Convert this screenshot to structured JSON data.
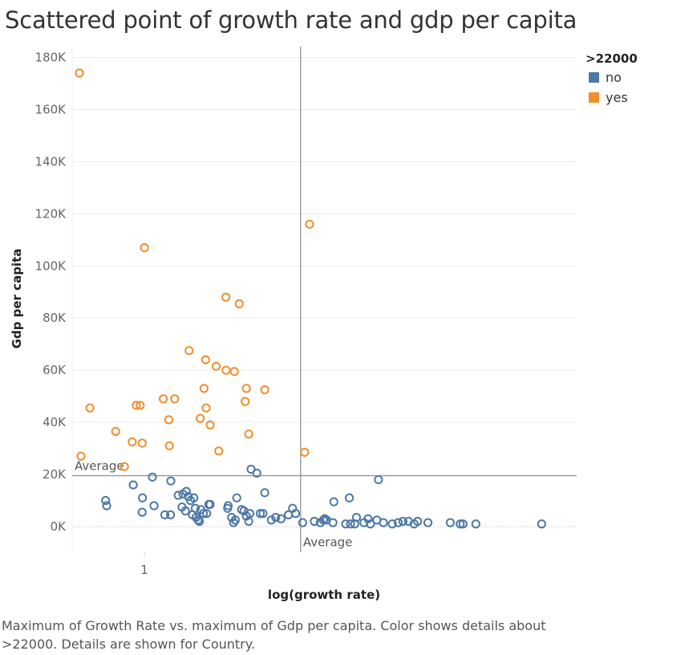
{
  "chart_data": {
    "type": "scatter",
    "title": "Scattered point of growth rate and gdp per capita",
    "xlabel": "log(growth rate)",
    "ylabel": "Gdp per capita",
    "x_scale": "log",
    "x_tick_labels": [
      {
        "value": 1,
        "label": "1"
      }
    ],
    "xlim": [
      0.8,
      3.8
    ],
    "ylim": [
      -10000,
      184000
    ],
    "y_ticks": [
      {
        "value": 0,
        "label": "0K"
      },
      {
        "value": 20000,
        "label": "20K"
      },
      {
        "value": 40000,
        "label": "40K"
      },
      {
        "value": 60000,
        "label": "60K"
      },
      {
        "value": 80000,
        "label": "80K"
      },
      {
        "value": 100000,
        "label": "100K"
      },
      {
        "value": 120000,
        "label": "120K"
      },
      {
        "value": 140000,
        "label": "140K"
      },
      {
        "value": 160000,
        "label": "160K"
      },
      {
        "value": 180000,
        "label": "180K"
      }
    ],
    "grid": true,
    "legend": {
      "title": ">22000",
      "placement": "right"
    },
    "reference_lines": {
      "x_average": {
        "value": 1.62,
        "label": "Average"
      },
      "y_average": {
        "value": 19500,
        "label": "Average"
      }
    },
    "series": [
      {
        "name": "no",
        "color": "#4e79a7",
        "points": [
          [
            0.887,
            10000
          ],
          [
            0.89,
            8000
          ],
          [
            0.966,
            16000
          ],
          [
            0.994,
            11000
          ],
          [
            0.993,
            5500
          ],
          [
            1.025,
            19000
          ],
          [
            1.03,
            8000
          ],
          [
            1.065,
            4500
          ],
          [
            1.085,
            17500
          ],
          [
            1.084,
            4500
          ],
          [
            1.11,
            12000
          ],
          [
            1.126,
            12500
          ],
          [
            1.123,
            7500
          ],
          [
            1.135,
            6000
          ],
          [
            1.138,
            13500
          ],
          [
            1.145,
            11500
          ],
          [
            1.153,
            10000
          ],
          [
            1.165,
            11000
          ],
          [
            1.17,
            7000
          ],
          [
            1.16,
            4500
          ],
          [
            1.173,
            3500
          ],
          [
            1.18,
            2500
          ],
          [
            1.185,
            2000
          ],
          [
            1.19,
            6500
          ],
          [
            1.2,
            5000
          ],
          [
            1.212,
            5000
          ],
          [
            1.22,
            8500
          ],
          [
            1.225,
            8500
          ],
          [
            1.293,
            7000
          ],
          [
            1.295,
            8000
          ],
          [
            1.309,
            3500
          ],
          [
            1.317,
            1500
          ],
          [
            1.324,
            2500
          ],
          [
            1.33,
            11000
          ],
          [
            1.35,
            6500
          ],
          [
            1.36,
            6000
          ],
          [
            1.37,
            4000
          ],
          [
            1.38,
            2000
          ],
          [
            1.385,
            5000
          ],
          [
            1.39,
            22000
          ],
          [
            1.415,
            20500
          ],
          [
            1.43,
            5000
          ],
          [
            1.442,
            5000
          ],
          [
            1.45,
            13000
          ],
          [
            1.48,
            2500
          ],
          [
            1.5,
            3500
          ],
          [
            1.525,
            3000
          ],
          [
            1.56,
            4500
          ],
          [
            1.58,
            7000
          ],
          [
            1.595,
            5000
          ],
          [
            1.63,
            1500
          ],
          [
            1.69,
            2000
          ],
          [
            1.722,
            1500
          ],
          [
            1.738,
            2500
          ],
          [
            1.745,
            3000
          ],
          [
            1.755,
            2500
          ],
          [
            1.79,
            1500
          ],
          [
            1.795,
            9500
          ],
          [
            1.862,
            1000
          ],
          [
            1.883,
            11000
          ],
          [
            1.89,
            1000
          ],
          [
            1.915,
            1000
          ],
          [
            1.925,
            3500
          ],
          [
            1.97,
            1500
          ],
          [
            1.995,
            3000
          ],
          [
            2.01,
            1000
          ],
          [
            2.05,
            2500
          ],
          [
            2.06,
            18000
          ],
          [
            2.092,
            1500
          ],
          [
            2.15,
            1000
          ],
          [
            2.19,
            1500
          ],
          [
            2.222,
            2000
          ],
          [
            2.26,
            2000
          ],
          [
            2.3,
            1000
          ],
          [
            2.325,
            2000
          ],
          [
            2.4,
            1500
          ],
          [
            2.572,
            1500
          ],
          [
            2.652,
            1000
          ],
          [
            2.675,
            1000
          ],
          [
            2.783,
            1000
          ],
          [
            3.41,
            1000
          ]
        ]
      },
      {
        "name": "yes",
        "color": "#f28e2b",
        "points": [
          [
            0.818,
            174000
          ],
          [
            0.822,
            27000
          ],
          [
            0.845,
            45500
          ],
          [
            0.915,
            36500
          ],
          [
            0.963,
            32500
          ],
          [
            0.975,
            46500
          ],
          [
            0.987,
            46500
          ],
          [
            0.993,
            32000
          ],
          [
            1.0,
            107000
          ],
          [
            1.06,
            49000
          ],
          [
            1.078,
            41000
          ],
          [
            1.08,
            31000
          ],
          [
            1.098,
            49000
          ],
          [
            1.148,
            67500
          ],
          [
            1.188,
            41500
          ],
          [
            1.202,
            53000
          ],
          [
            1.208,
            64000
          ],
          [
            1.21,
            45500
          ],
          [
            1.225,
            39000
          ],
          [
            1.248,
            61500
          ],
          [
            1.258,
            29000
          ],
          [
            1.286,
            88000
          ],
          [
            1.287,
            60000
          ],
          [
            1.32,
            59500
          ],
          [
            1.34,
            85500
          ],
          [
            1.365,
            48000
          ],
          [
            1.37,
            53000
          ],
          [
            1.38,
            35500
          ],
          [
            1.45,
            52500
          ],
          [
            1.64,
            28500
          ],
          [
            1.665,
            116000
          ],
          [
            0.94,
            23000
          ]
        ]
      }
    ]
  },
  "caption": "Maximum of Growth Rate vs. maximum of Gdp per capita.  Color shows details about >22000.  Details are shown for Country."
}
